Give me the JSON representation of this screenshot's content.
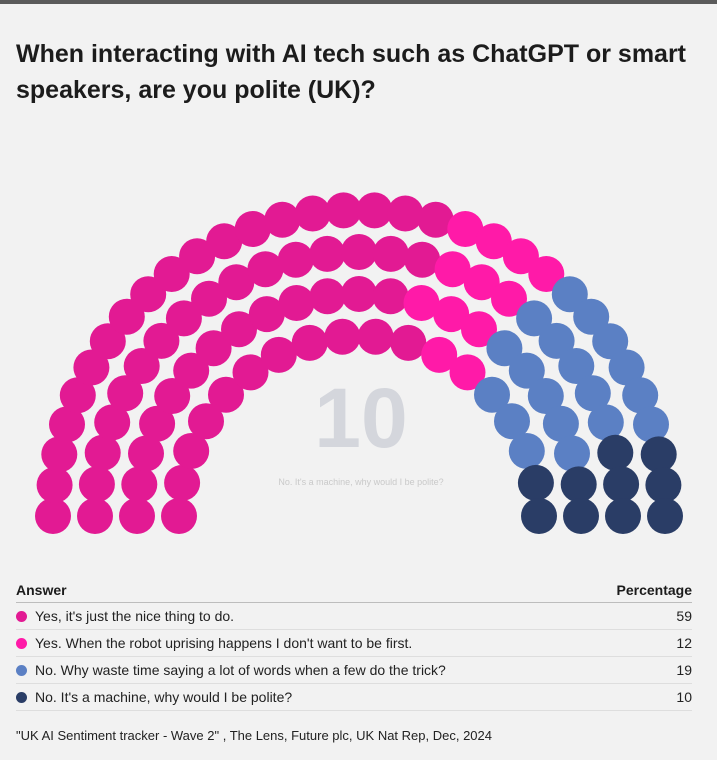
{
  "title": "When interacting with AI tech such as ChatGPT or smart speakers, are you polite (UK)?",
  "table": {
    "header_answer": "Answer",
    "header_percentage": "Percentage",
    "rows": [
      {
        "label": "Yes, it's just the nice thing to do.",
        "value": "59"
      },
      {
        "label": "Yes. When the robot uprising happens I don't want to be first.",
        "value": "12"
      },
      {
        "label": "No. Why waste time saying a lot of words when a few do the trick?",
        "value": "19"
      },
      {
        "label": "No. It's a machine, why would I be polite?",
        "value": "10"
      }
    ]
  },
  "source": "\"UK AI Sentiment tracker - Wave 2\" , The Lens, Future plc, UK Nat Rep, Dec, 2024",
  "chart_data": {
    "type": "parliament",
    "title": "When interacting with AI tech such as ChatGPT or smart speakers, are you polite (UK)?",
    "center_value": "10",
    "center_label": "No. It's a machine, why would I be polite?",
    "series": [
      {
        "name": "Yes, it's just the nice thing to do.",
        "value": 59,
        "color": "#e21a93"
      },
      {
        "name": "Yes. When the robot uprising happens I don't want to be first.",
        "value": 12,
        "color": "#ff1aa8"
      },
      {
        "name": "No. Why waste time saying a lot of words when a few do the trick?",
        "value": 19,
        "color": "#5b80c4"
      },
      {
        "name": "No. It's a machine, why would I be polite?",
        "value": 10,
        "color": "#2a3d66"
      }
    ],
    "total_seats": 100
  }
}
